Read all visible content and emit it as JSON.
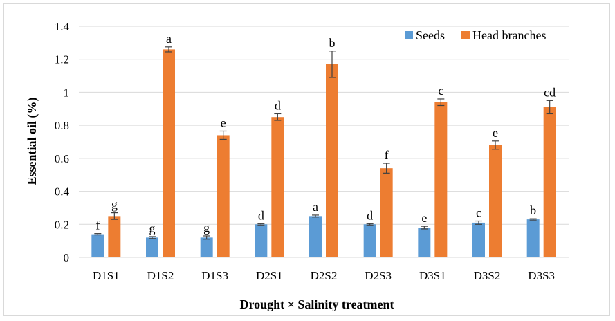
{
  "chart_data": {
    "type": "bar",
    "title": "",
    "xlabel": "Drought × Salinity treatment",
    "ylabel": "Essential  oil (%)",
    "ylim": [
      0,
      1.4
    ],
    "yticks": [
      0,
      0.2,
      0.4,
      0.6,
      0.8,
      1,
      1.2,
      1.4
    ],
    "ytick_labels": [
      "0",
      "0.2",
      "0.4",
      "0.6",
      "0.8",
      "1",
      "1.2",
      "1.4"
    ],
    "grid": true,
    "legend_position": "top-right",
    "categories": [
      "D1S1",
      "D1S2",
      "D1S3",
      "D2S1",
      "D2S2",
      "D2S3",
      "D3S1",
      "D3S2",
      "D3S3"
    ],
    "series": [
      {
        "name": "Seeds",
        "color": "#5b9bd5",
        "values": [
          0.14,
          0.12,
          0.12,
          0.2,
          0.25,
          0.2,
          0.18,
          0.21,
          0.23
        ],
        "errors": [
          0.004,
          0.006,
          0.01,
          0.004,
          0.006,
          0.004,
          0.008,
          0.01,
          0.004
        ],
        "letters": [
          "f",
          "g",
          "g",
          "d",
          "a",
          "d",
          "e",
          "c",
          "b"
        ]
      },
      {
        "name": "Head branches",
        "color": "#ed7d31",
        "values": [
          0.25,
          1.26,
          0.74,
          0.85,
          1.17,
          0.54,
          0.94,
          0.68,
          0.91
        ],
        "errors": [
          0.02,
          0.015,
          0.025,
          0.02,
          0.08,
          0.03,
          0.02,
          0.025,
          0.04
        ],
        "letters": [
          "g",
          "a",
          "e",
          "d",
          "b",
          "f",
          "c",
          "e",
          "cd"
        ]
      }
    ]
  }
}
